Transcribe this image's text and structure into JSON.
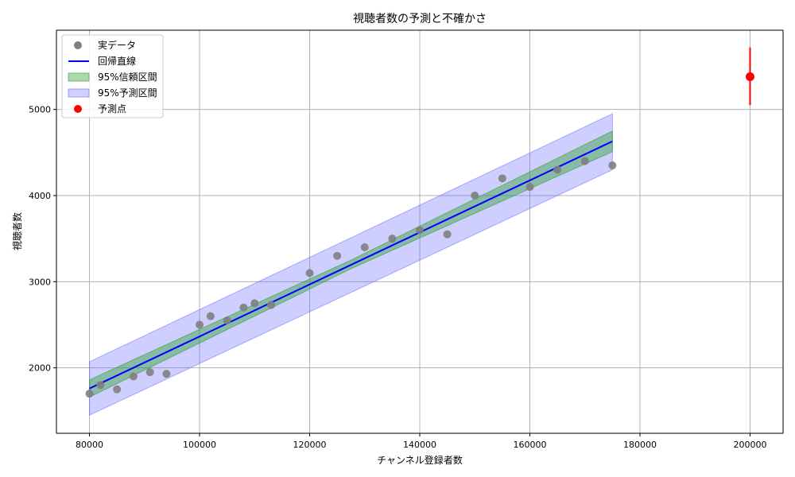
{
  "chart_data": {
    "type": "scatter",
    "title": "視聴者数の予測と不確かさ",
    "xlabel": "チャンネル登録者数",
    "ylabel": "視聴者数",
    "xlim": [
      74000,
      206000
    ],
    "ylim": [
      1240,
      5920
    ],
    "xticks": [
      80000,
      100000,
      120000,
      140000,
      160000,
      180000,
      200000
    ],
    "yticks": [
      2000,
      3000,
      4000,
      5000
    ],
    "grid": true,
    "legend_position": "top-left",
    "colors": {
      "data_points": "#7f7f7f",
      "regression_line": "#0000ff",
      "confidence_band": "#2ca02c",
      "prediction_band": "#6666ff",
      "prediction_point": "#ff0000"
    },
    "series": [
      {
        "name": "実データ",
        "kind": "scatter",
        "points": [
          [
            80000,
            1700
          ],
          [
            82000,
            1800
          ],
          [
            85000,
            1750
          ],
          [
            88000,
            1900
          ],
          [
            91000,
            1950
          ],
          [
            94000,
            1930
          ],
          [
            100000,
            2500
          ],
          [
            102000,
            2600
          ],
          [
            105000,
            2550
          ],
          [
            108000,
            2700
          ],
          [
            110000,
            2750
          ],
          [
            113000,
            2730
          ],
          [
            120000,
            3100
          ],
          [
            125000,
            3300
          ],
          [
            130000,
            3400
          ],
          [
            135000,
            3500
          ],
          [
            140000,
            3600
          ],
          [
            145000,
            3550
          ],
          [
            150000,
            4000
          ],
          [
            155000,
            4200
          ],
          [
            160000,
            4100
          ],
          [
            165000,
            4300
          ],
          [
            170000,
            4400
          ],
          [
            175000,
            4350
          ]
        ]
      },
      {
        "name": "回帰直線",
        "kind": "line",
        "x": [
          80000,
          175000
        ],
        "y": [
          1760,
          4630
        ]
      },
      {
        "name": "95%信頼区間",
        "kind": "band",
        "x": [
          80000,
          127500,
          175000
        ],
        "lower": [
          1660,
          3150,
          4510
        ],
        "upper": [
          1860,
          3250,
          4750
        ]
      },
      {
        "name": "95%予測区間",
        "kind": "band",
        "x": [
          80000,
          175000
        ],
        "lower": [
          1450,
          4300
        ],
        "upper": [
          2070,
          4950
        ]
      },
      {
        "name": "予測点",
        "kind": "point_with_errorbar",
        "x": 200000,
        "y": 5380,
        "lower": 5050,
        "upper": 5720
      }
    ]
  }
}
